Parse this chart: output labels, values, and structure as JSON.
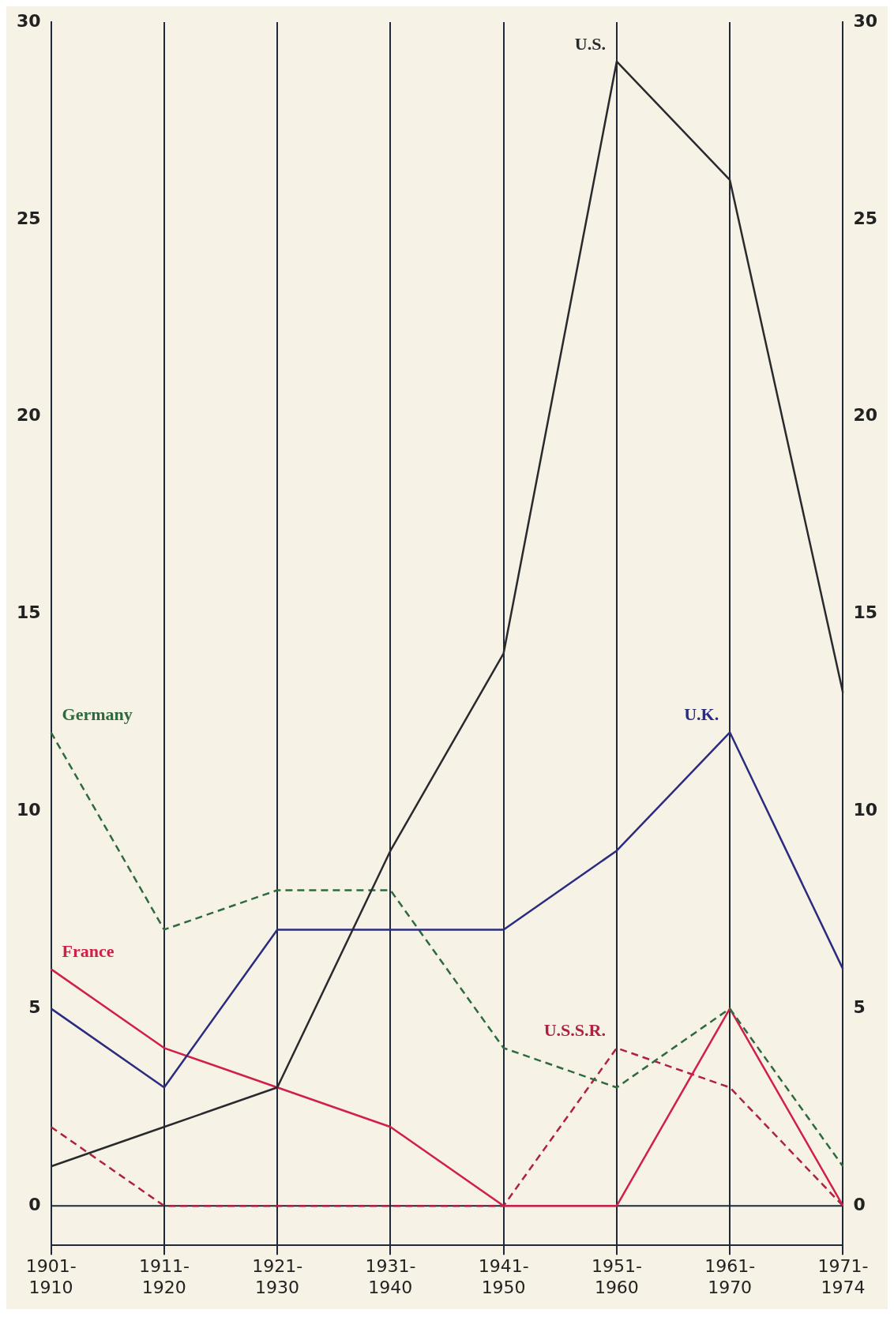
{
  "chart_data": {
    "type": "line",
    "categories": [
      "1901-1910",
      "1911-1920",
      "1921-1930",
      "1931-1940",
      "1941-1950",
      "1951-1960",
      "1961-1970",
      "1971-1974"
    ],
    "ylim": [
      -1,
      30
    ],
    "yticks": [
      0,
      5,
      10,
      15,
      20,
      25,
      30
    ],
    "y2lim": [
      -1,
      30
    ],
    "y2ticks": [
      0,
      5,
      10,
      15,
      20,
      25,
      30
    ],
    "grid": "x",
    "legend": false,
    "marker": "none",
    "ref_lines": [
      {
        "axis": "y",
        "value": 0,
        "color": "#1e2a3a"
      }
    ],
    "series": [
      {
        "name": "U.S.",
        "color": "#2a2a2e",
        "line_style": "solid",
        "values": [
          1,
          2,
          3,
          9,
          14,
          29,
          26,
          13
        ]
      },
      {
        "name": "U.K.",
        "color": "#2b2b80",
        "line_style": "solid",
        "values": [
          5,
          3,
          7,
          7,
          7,
          9,
          12,
          6
        ]
      },
      {
        "name": "Germany",
        "color": "#2e6a3e",
        "line_style": "dashed",
        "values": [
          12,
          7,
          8,
          8,
          4,
          3,
          5,
          1
        ]
      },
      {
        "name": "France",
        "color": "#d0204a",
        "line_style": "solid",
        "values": [
          6,
          4,
          3,
          2,
          0,
          0,
          5,
          0
        ]
      },
      {
        "name": "U.S.S.R.",
        "color": "#b02040",
        "line_style": "dashed",
        "values": [
          2,
          0,
          0,
          0,
          0,
          4,
          3,
          0
        ]
      }
    ]
  }
}
